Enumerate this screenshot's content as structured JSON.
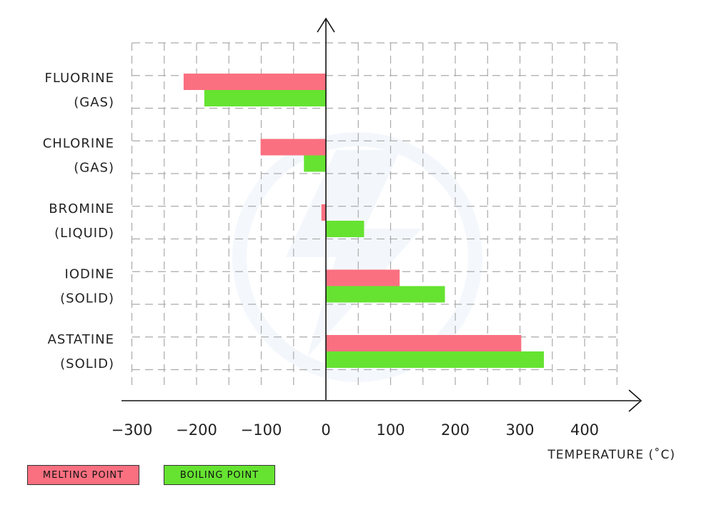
{
  "chart_data": {
    "type": "bar",
    "orientation": "horizontal",
    "categories": [
      [
        "FLUORINE",
        "(GAS)"
      ],
      [
        "CHLORINE",
        "(GAS)"
      ],
      [
        "BROMINE",
        "(LIQUID)"
      ],
      [
        "IODINE",
        "(SOLID)"
      ],
      [
        "ASTATINE",
        "(SOLID)"
      ]
    ],
    "series": [
      {
        "name": "MELTING POINT",
        "color": "#fa7080",
        "values": [
          -220,
          -101,
          -7,
          114,
          302
        ]
      },
      {
        "name": "BOILING POINT",
        "color": "#66e331",
        "values": [
          -188,
          -34,
          59,
          184,
          337
        ]
      }
    ],
    "xlim": [
      -300,
      450
    ],
    "xticks": [
      -300,
      -200,
      -100,
      0,
      100,
      200,
      300,
      400
    ],
    "xtick_labels": [
      "−300",
      "−200",
      "−100",
      "0",
      "100",
      "200",
      "300",
      "400"
    ],
    "xlabel": "TEMPERATURE (˚C)",
    "ylabel": "",
    "title": "",
    "grid": true,
    "legend_position": "bottom-left"
  }
}
